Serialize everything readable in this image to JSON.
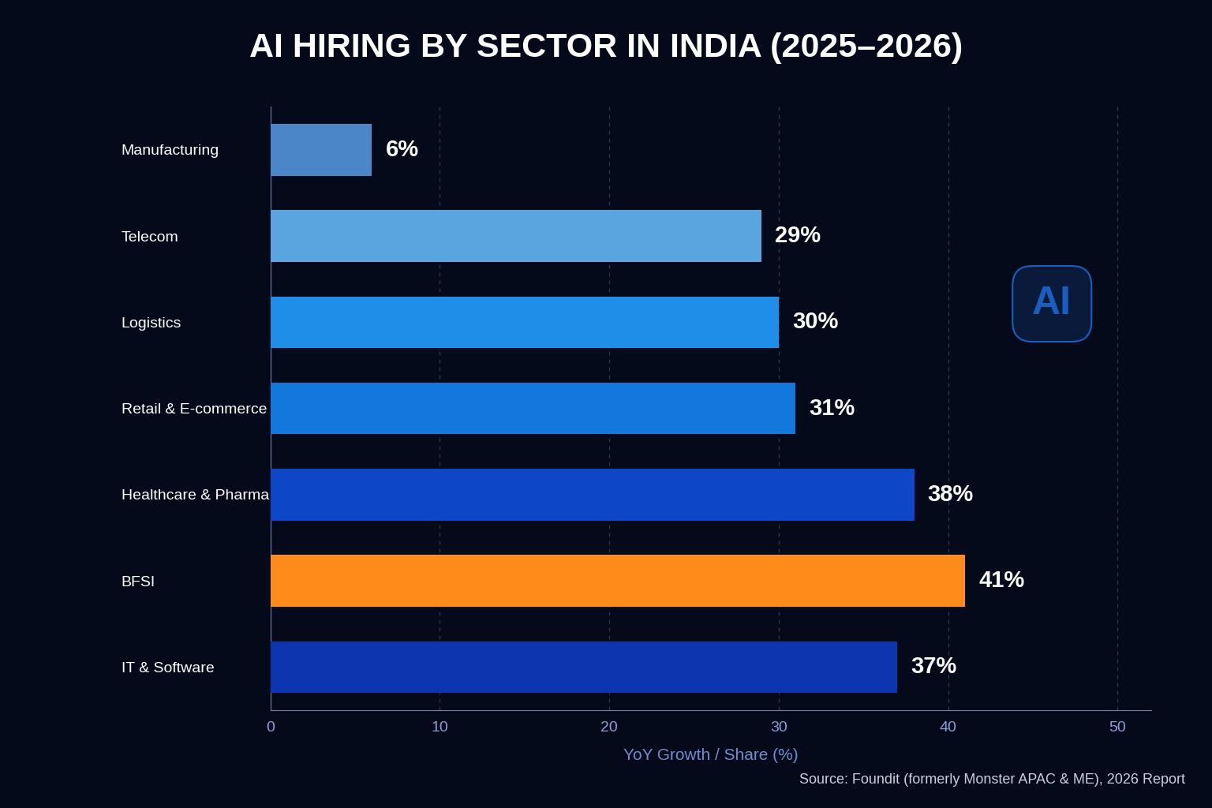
{
  "chart_data": {
    "type": "bar",
    "orientation": "horizontal",
    "title": "AI HIRING BY SECTOR IN INDIA (2025–2026)",
    "x_label": "YoY Growth / Share (%)",
    "categories": [
      "Manufacturing",
      "Telecom",
      "Logistics",
      "Retail & E-commerce",
      "Healthcare & Pharma",
      "BFSI",
      "IT & Software"
    ],
    "values": [
      6,
      29,
      30,
      31,
      38,
      41,
      37
    ],
    "value_labels": [
      "6%",
      "29%",
      "30%",
      "31%",
      "38%",
      "41%",
      "37%"
    ],
    "colors": [
      "#4a86c8",
      "#5aa5e0",
      "#1e8ee8",
      "#1378dc",
      "#0d47c8",
      "#ff8c1a",
      "#0d35b0"
    ],
    "xlim": [
      0,
      52
    ],
    "xticks": [
      0,
      10,
      20,
      30,
      40,
      50
    ],
    "grid": true,
    "data_labels": true,
    "annotations": [
      {
        "text": "AI"
      },
      {
        "text": "Source: Foundit (formerly Monster APAC & ME), 2026 Report"
      }
    ]
  }
}
